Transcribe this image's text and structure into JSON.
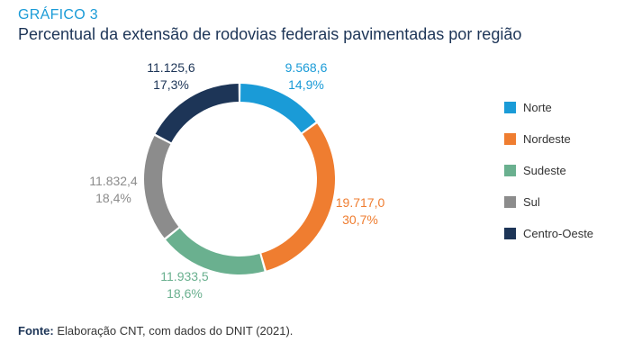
{
  "header": {
    "label": "GRÁFICO 3",
    "title": "Percentual da extensão de rodovias federais pavimentadas por região"
  },
  "chart_data": {
    "type": "pie",
    "donut": true,
    "title": "Percentual da extensão de rodovias federais pavimentadas por região",
    "legend_position": "right",
    "slices": [
      {
        "name": "Norte",
        "value": 9568.6,
        "value_label": "9.568,6",
        "percent_label": "14,9%",
        "color": "#1a9bd7"
      },
      {
        "name": "Nordeste",
        "value": 19717.0,
        "value_label": "19.717,0",
        "percent_label": "30,7%",
        "color": "#ef7d30"
      },
      {
        "name": "Sudeste",
        "value": 11933.5,
        "value_label": "11.933,5",
        "percent_label": "18,6%",
        "color": "#6ab08f"
      },
      {
        "name": "Sul",
        "value": 11832.4,
        "value_label": "11.832,4",
        "percent_label": "18,4%",
        "color": "#8c8c8c"
      },
      {
        "name": "Centro-Oeste",
        "value": 11125.6,
        "value_label": "11.125,6",
        "percent_label": "17,3%",
        "color": "#1d3557"
      }
    ]
  },
  "footer": {
    "source_prefix": "Fonte:",
    "source_text": " Elaboração CNT, com dados do DNIT (2021)."
  }
}
